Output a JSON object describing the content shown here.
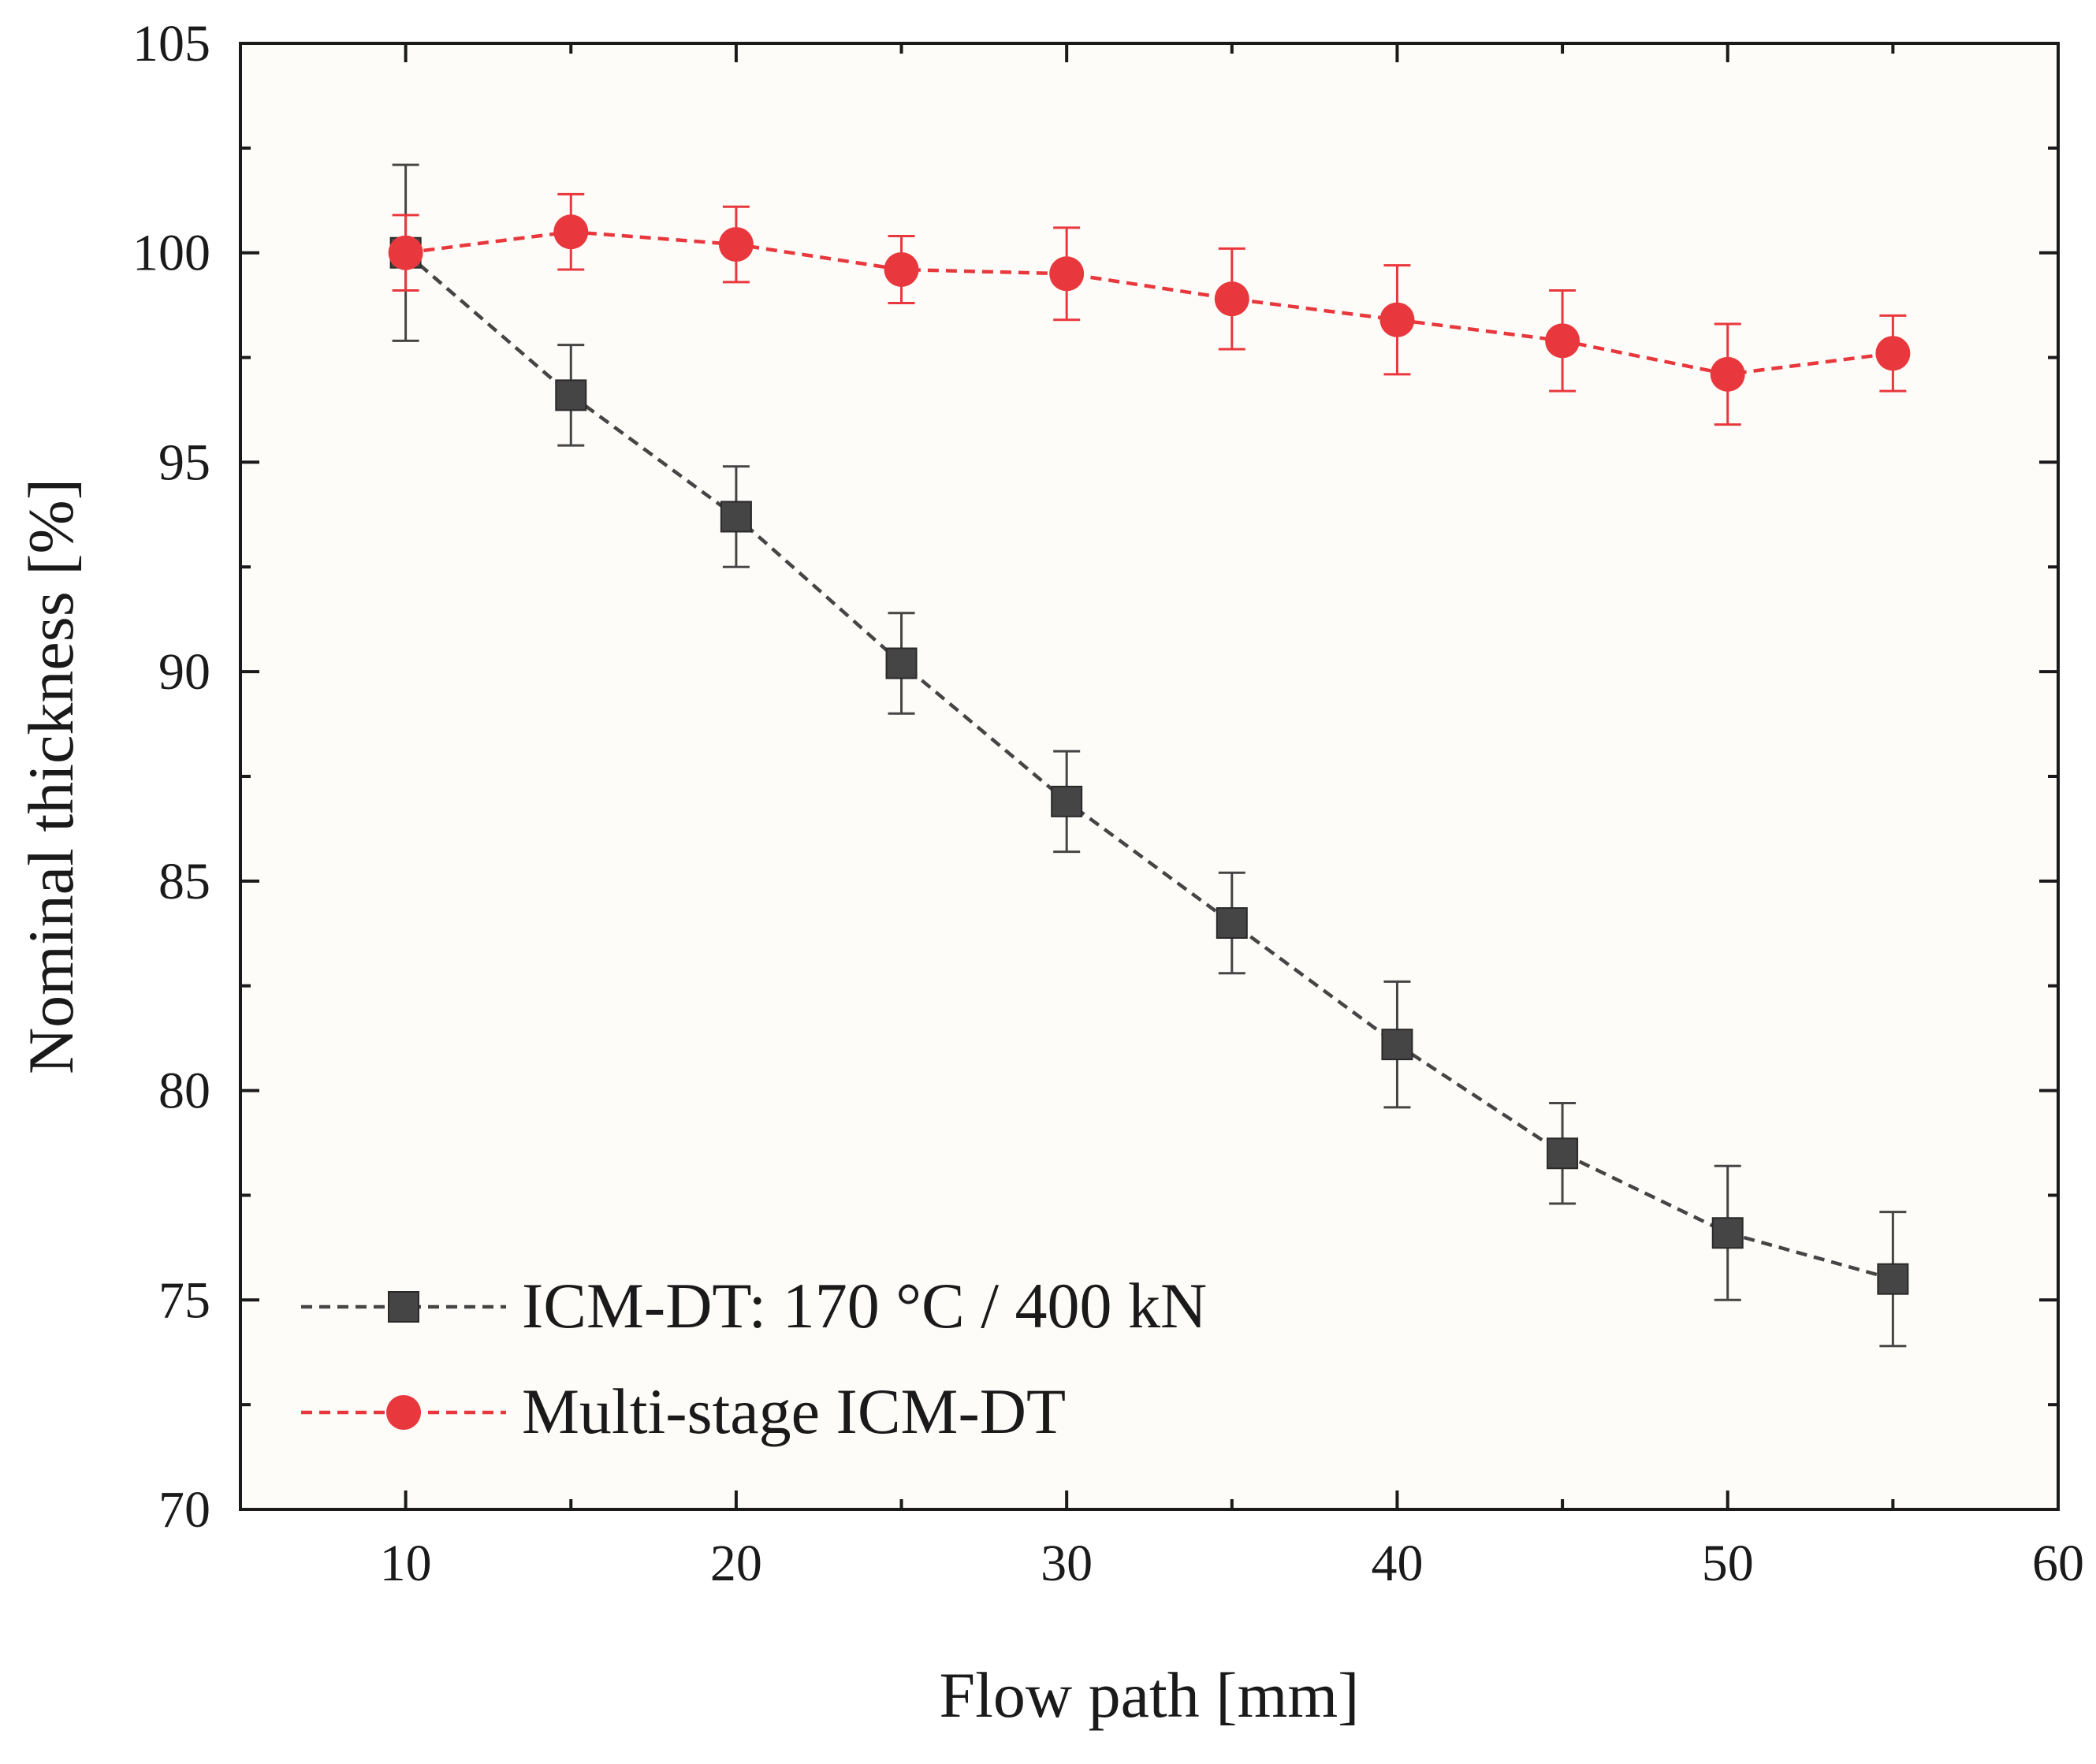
{
  "chart_data": {
    "type": "line",
    "title": "",
    "xlabel": "Flow path [mm]",
    "ylabel": "Nominal thickness [%]",
    "xlim": [
      5,
      60
    ],
    "ylim": [
      70,
      105
    ],
    "xticks": [
      10,
      20,
      30,
      40,
      50,
      60
    ],
    "yticks": [
      70,
      75,
      80,
      85,
      90,
      95,
      100,
      105
    ],
    "legend_position": "bottom-left",
    "series": [
      {
        "name": "ICM-DT: 170 °C / 400 kN",
        "color": "#454545",
        "marker": "square",
        "line": "dashed",
        "x": [
          10,
          15,
          20,
          25,
          30,
          35,
          40,
          45,
          50,
          55
        ],
        "y": [
          100.0,
          96.6,
          93.7,
          90.2,
          86.9,
          84.0,
          81.1,
          78.5,
          76.6,
          75.5
        ],
        "err": [
          2.1,
          1.2,
          1.2,
          1.2,
          1.2,
          1.2,
          1.5,
          1.2,
          1.6,
          1.6
        ]
      },
      {
        "name": "Multi-stage ICM-DT",
        "color": "#e8383d",
        "marker": "circle",
        "line": "dashed",
        "x": [
          10,
          15,
          20,
          25,
          30,
          35,
          40,
          45,
          50,
          55
        ],
        "y": [
          100.0,
          100.5,
          100.2,
          99.6,
          99.5,
          98.9,
          98.4,
          97.9,
          97.1,
          97.6
        ],
        "err": [
          0.9,
          0.9,
          0.9,
          0.8,
          1.1,
          1.2,
          1.3,
          1.2,
          1.2,
          0.9
        ]
      }
    ]
  }
}
